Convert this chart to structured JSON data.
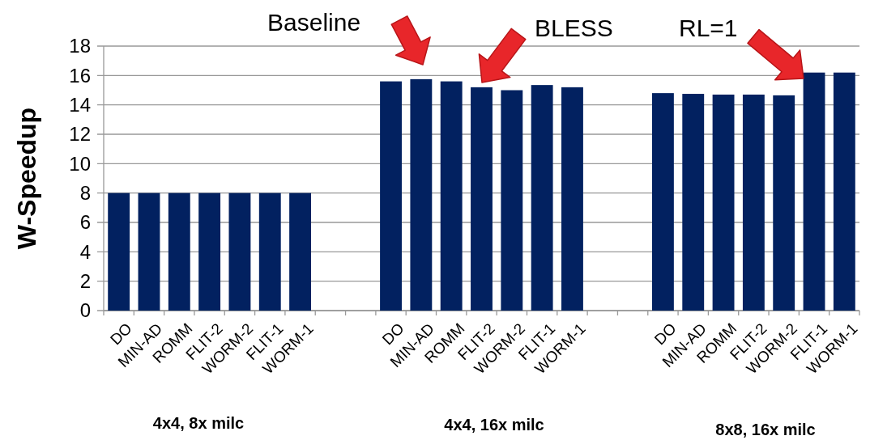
{
  "chart_data": {
    "type": "bar",
    "ylabel": "W-Speedup",
    "categories": [
      "DO",
      "MIN-AD",
      "ROMM",
      "FLIT-2",
      "WORM-2",
      "FLIT-1",
      "WORM-1",
      null,
      null,
      "DO",
      "MIN-AD",
      "ROMM",
      "FLIT-2",
      "WORM-2",
      "FLIT-1",
      "WORM-1",
      null,
      null,
      "DO",
      "MIN-AD",
      "ROMM",
      "FLIT-2",
      "WORM-2",
      "FLIT-1",
      "WORM-1"
    ],
    "values": [
      8,
      8,
      8,
      8,
      8,
      8,
      8,
      null,
      null,
      15.6,
      15.75,
      15.6,
      15.2,
      15.0,
      15.35,
      15.2,
      null,
      null,
      14.8,
      14.75,
      14.7,
      14.7,
      14.65,
      16.2,
      16.2
    ],
    "color": "#022160",
    "ylim": [
      0,
      18
    ],
    "yticks": [
      0,
      2,
      4,
      6,
      8,
      10,
      12,
      14,
      16,
      18
    ],
    "grid": "y",
    "annotations": [
      "Baseline",
      "BLESS",
      "RL=1",
      "4x4, 8x milc",
      "4x4, 16x milc",
      "8x8, 16x milc"
    ]
  }
}
